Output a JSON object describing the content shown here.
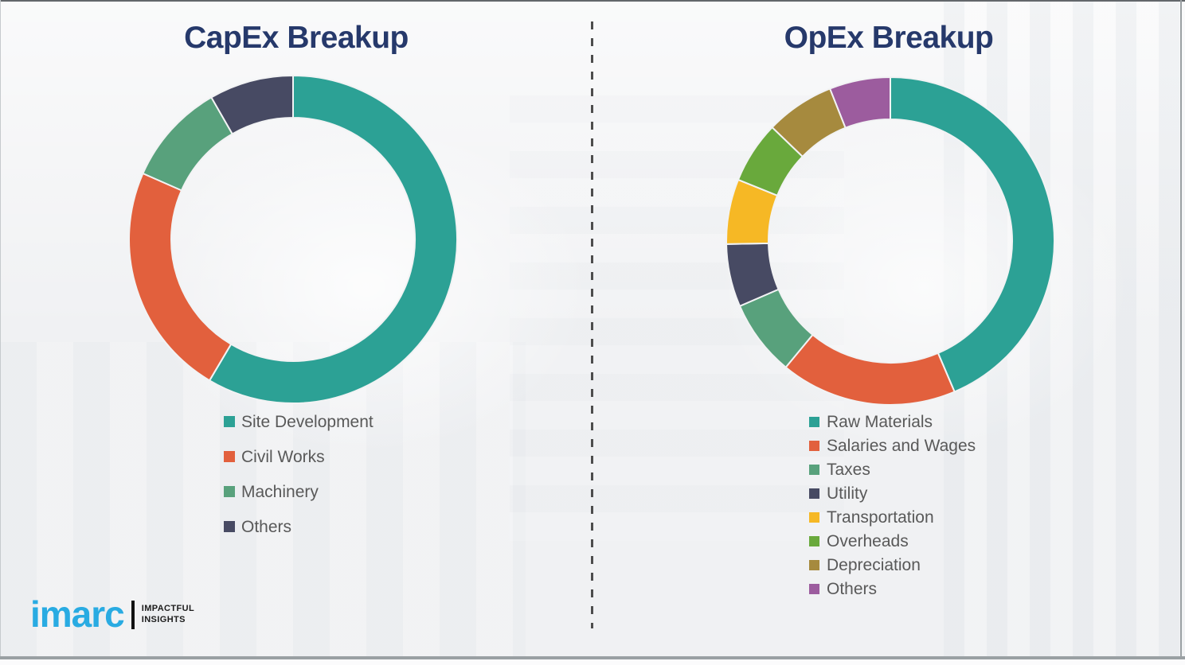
{
  "theme": {
    "background": "#F0F1F3",
    "title_color": "#26396B",
    "legend_text_color": "#595959",
    "divider_color": "#4D4D4D",
    "logo_blue": "#29ABE2"
  },
  "chart_data": [
    {
      "type": "pie",
      "subtype": "donut",
      "title": "CapEx Breakup",
      "categories": [
        "Site Development",
        "Civil Works",
        "Machinery",
        "Others"
      ],
      "values": [
        58.5,
        23.1,
        10.1,
        8.3
      ],
      "values_note": "percent shares estimated from arc angles; no numeric labels are shown in the figure",
      "colors": [
        "#2CA195",
        "#E2603D",
        "#58A17C",
        "#474A63"
      ],
      "start_angle_deg": 0,
      "direction": "clockwise",
      "legend_position": "below-chart-left"
    },
    {
      "type": "pie",
      "subtype": "donut",
      "title": "OpEx Breakup",
      "categories": [
        "Raw Materials",
        "Salaries and Wages",
        "Taxes",
        "Utility",
        "Transportation",
        "Overheads",
        "Depreciation",
        "Others"
      ],
      "values": [
        43.6,
        17.4,
        7.5,
        6.2,
        6.4,
        6.1,
        6.8,
        6.0
      ],
      "values_note": "percent shares estimated from arc angles; no numeric labels are shown in the figure",
      "colors": [
        "#2CA195",
        "#E2603D",
        "#58A17C",
        "#474A63",
        "#F6B825",
        "#69A93C",
        "#A68A3E",
        "#9C5C9E"
      ],
      "start_angle_deg": 0,
      "direction": "clockwise",
      "legend_position": "below-chart-left"
    }
  ],
  "logo": {
    "brand": "imarc",
    "tagline_line1": "IMPACTFUL",
    "tagline_line2": "INSIGHTS"
  }
}
